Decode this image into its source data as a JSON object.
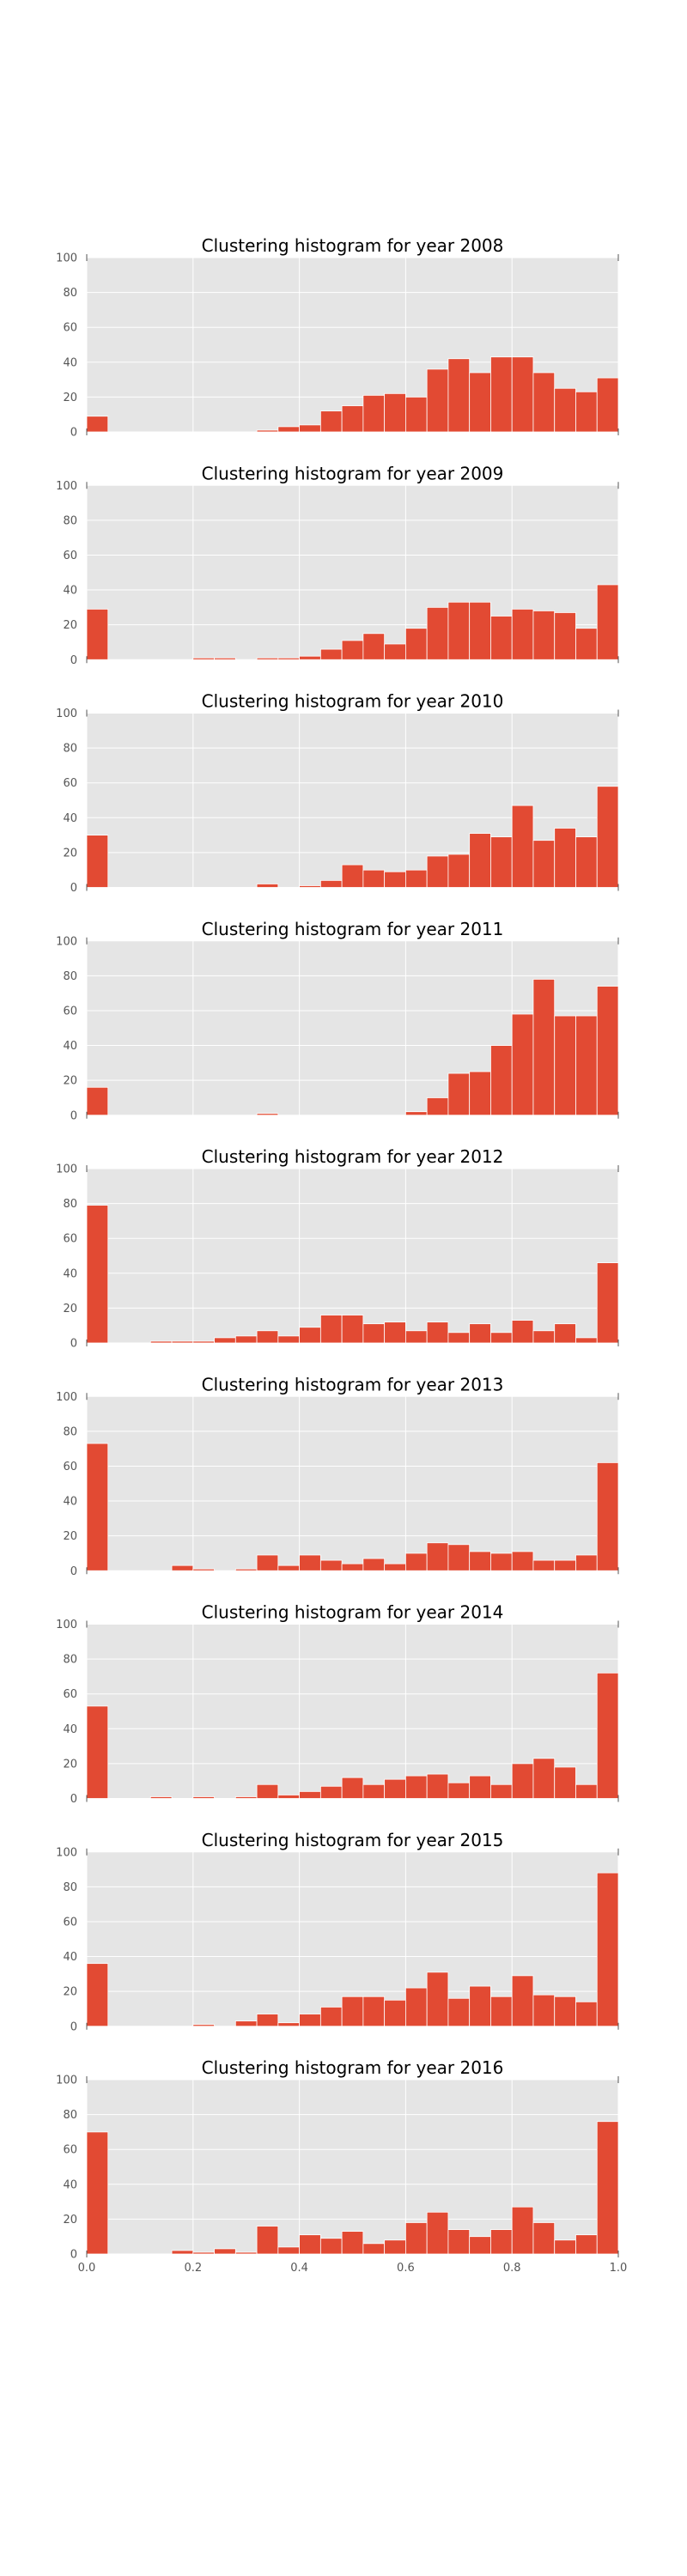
{
  "chart_data": [
    {
      "type": "bar",
      "title": "Clustering histogram for year 2008",
      "xlim": [
        0.0,
        1.0
      ],
      "ylim": [
        0,
        100
      ],
      "yticks": [
        0,
        20,
        40,
        60,
        80,
        100
      ],
      "xticks": [],
      "bin_width": 0.04,
      "grid": true,
      "values": [
        9,
        0,
        0,
        0,
        0,
        0,
        0,
        0,
        1,
        3,
        4,
        12,
        15,
        21,
        22,
        20,
        36,
        42,
        34,
        43,
        43,
        34,
        25,
        23,
        31
      ]
    },
    {
      "type": "bar",
      "title": "Clustering histogram for year 2009",
      "xlim": [
        0.0,
        1.0
      ],
      "ylim": [
        0,
        100
      ],
      "yticks": [
        0,
        20,
        40,
        60,
        80,
        100
      ],
      "xticks": [],
      "bin_width": 0.04,
      "grid": true,
      "values": [
        29,
        0,
        0,
        0,
        0,
        1,
        1,
        0,
        1,
        1,
        2,
        6,
        11,
        15,
        9,
        18,
        30,
        33,
        33,
        25,
        29,
        28,
        27,
        18,
        43
      ]
    },
    {
      "type": "bar",
      "title": "Clustering histogram for year 2010",
      "xlim": [
        0.0,
        1.0
      ],
      "ylim": [
        0,
        100
      ],
      "yticks": [
        0,
        20,
        40,
        60,
        80,
        100
      ],
      "xticks": [],
      "bin_width": 0.04,
      "grid": true,
      "values": [
        30,
        0,
        0,
        0,
        0,
        0,
        0,
        0,
        2,
        0,
        1,
        4,
        13,
        10,
        9,
        10,
        18,
        19,
        31,
        29,
        47,
        27,
        34,
        29,
        58
      ]
    },
    {
      "type": "bar",
      "title": "Clustering histogram for year 2011",
      "xlim": [
        0.0,
        1.0
      ],
      "ylim": [
        0,
        100
      ],
      "yticks": [
        0,
        20,
        40,
        60,
        80,
        100
      ],
      "xticks": [],
      "bin_width": 0.04,
      "grid": true,
      "values": [
        16,
        0,
        0,
        0,
        0,
        0,
        0,
        0,
        1,
        0,
        0,
        0,
        0,
        0,
        0,
        2,
        10,
        24,
        25,
        40,
        58,
        78,
        57,
        57,
        74
      ]
    },
    {
      "type": "bar",
      "title": "Clustering histogram for year 2012",
      "xlim": [
        0.0,
        1.0
      ],
      "ylim": [
        0,
        100
      ],
      "yticks": [
        0,
        20,
        40,
        60,
        80,
        100
      ],
      "xticks": [],
      "bin_width": 0.04,
      "grid": true,
      "values": [
        79,
        0,
        0,
        1,
        1,
        1,
        3,
        4,
        7,
        4,
        9,
        16,
        16,
        11,
        12,
        7,
        12,
        6,
        11,
        6,
        13,
        7,
        11,
        3,
        46
      ]
    },
    {
      "type": "bar",
      "title": "Clustering histogram for year 2013",
      "xlim": [
        0.0,
        1.0
      ],
      "ylim": [
        0,
        100
      ],
      "yticks": [
        0,
        20,
        40,
        60,
        80,
        100
      ],
      "xticks": [],
      "bin_width": 0.04,
      "grid": true,
      "values": [
        73,
        0,
        0,
        0,
        3,
        1,
        0,
        1,
        9,
        3,
        9,
        6,
        4,
        7,
        4,
        10,
        16,
        15,
        11,
        10,
        11,
        6,
        6,
        9,
        62
      ]
    },
    {
      "type": "bar",
      "title": "Clustering histogram for year 2014",
      "xlim": [
        0.0,
        1.0
      ],
      "ylim": [
        0,
        100
      ],
      "yticks": [
        0,
        20,
        40,
        60,
        80,
        100
      ],
      "xticks": [],
      "bin_width": 0.04,
      "grid": true,
      "values": [
        53,
        0,
        0,
        1,
        0,
        1,
        0,
        1,
        8,
        2,
        4,
        7,
        12,
        8,
        11,
        13,
        14,
        9,
        13,
        8,
        20,
        23,
        18,
        8,
        72
      ]
    },
    {
      "type": "bar",
      "title": "Clustering histogram for year 2015",
      "xlim": [
        0.0,
        1.0
      ],
      "ylim": [
        0,
        100
      ],
      "yticks": [
        0,
        20,
        40,
        60,
        80,
        100
      ],
      "xticks": [],
      "bin_width": 0.04,
      "grid": true,
      "values": [
        36,
        0,
        0,
        0,
        0,
        1,
        0,
        3,
        7,
        2,
        7,
        11,
        17,
        17,
        15,
        22,
        31,
        16,
        23,
        17,
        29,
        18,
        17,
        14,
        88
      ]
    },
    {
      "type": "bar",
      "title": "Clustering histogram for year 2016",
      "xlim": [
        0.0,
        1.0
      ],
      "ylim": [
        0,
        100
      ],
      "yticks": [
        0,
        20,
        40,
        60,
        80,
        100
      ],
      "xticks": [
        "0.0",
        "0.2",
        "0.4",
        "0.6",
        "0.8",
        "1.0"
      ],
      "bin_width": 0.04,
      "grid": true,
      "values": [
        70,
        0,
        0,
        0,
        2,
        1,
        3,
        1,
        16,
        4,
        11,
        9,
        13,
        6,
        8,
        18,
        24,
        14,
        10,
        14,
        27,
        18,
        8,
        11,
        76
      ]
    }
  ],
  "colors": {
    "bar": "#e24a33",
    "bar_edge": "#ffffff",
    "axes_background": "#e5e5e5",
    "grid": "#ffffff"
  }
}
